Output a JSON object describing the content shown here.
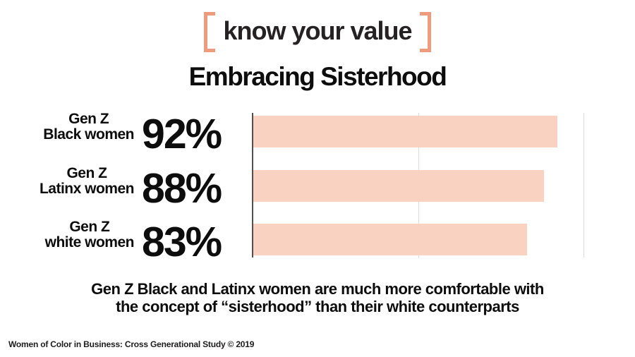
{
  "logo": {
    "text": "know your value",
    "bracket_color": "#ef9b7e",
    "text_color": "#262223"
  },
  "title": "Embracing Sisterhood",
  "chart_data": {
    "type": "bar",
    "orientation": "horizontal",
    "title": "Embracing Sisterhood",
    "categories": [
      "Gen Z Black women",
      "Gen Z Latinx women",
      "Gen Z white women"
    ],
    "values": [
      92,
      88,
      83
    ],
    "value_labels": [
      "92%",
      "88%",
      "83%"
    ],
    "xlim": [
      0,
      100
    ],
    "gridlines": [
      50,
      100
    ],
    "grid": "vertical-lines-at-50-and-100",
    "legend": "none",
    "bar_color": "#f9d2c2",
    "axis_color": "#544e4c",
    "gridline_color": "#dcdcdc"
  },
  "rows": [
    {
      "label_top": "Gen Z",
      "label_bottom": "Black women",
      "pct": "92%"
    },
    {
      "label_top": "Gen Z",
      "label_bottom": "Latinx women",
      "pct": "88%"
    },
    {
      "label_top": "Gen Z",
      "label_bottom": "white women",
      "pct": "83%"
    }
  ],
  "caption": {
    "line1": "Gen Z Black and Latinx women are much more comfortable with",
    "line2": "the concept of “sisterhood” than their white counterparts"
  },
  "footer": "Women of Color in Business: Cross Generational Study © 2019"
}
